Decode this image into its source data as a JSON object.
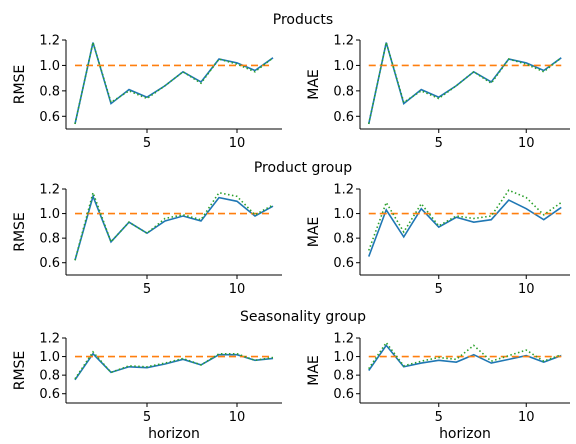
{
  "chart_data": [
    {
      "type": "line",
      "group_title": "Products",
      "ylabel": "RMSE",
      "xlabel": "",
      "xlim": [
        0.5,
        12.5
      ],
      "ylim": [
        0.5,
        1.2
      ],
      "yticks": [
        0.6,
        0.8,
        1.0,
        1.2
      ],
      "xticks": [
        5,
        10
      ],
      "x": [
        1,
        2,
        3,
        4,
        5,
        6,
        7,
        8,
        9,
        10,
        11,
        12
      ],
      "series": [
        {
          "color": "#1f77b4",
          "style": "solid",
          "values": [
            0.54,
            1.18,
            0.7,
            0.81,
            0.75,
            0.84,
            0.95,
            0.87,
            1.05,
            1.02,
            0.96,
            1.06
          ]
        },
        {
          "color": "#ff7f0e",
          "style": "dashed",
          "values": [
            1.0,
            1.0,
            1.0,
            1.0,
            1.0,
            1.0,
            1.0,
            1.0,
            1.0,
            1.0,
            1.0,
            1.0
          ]
        },
        {
          "color": "#2ca02c",
          "style": "dotted",
          "values": [
            0.54,
            1.18,
            0.71,
            0.8,
            0.74,
            0.84,
            0.95,
            0.86,
            1.05,
            1.01,
            0.95,
            1.06
          ]
        }
      ]
    },
    {
      "type": "line",
      "group_title": "",
      "ylabel": "MAE",
      "xlabel": "",
      "xlim": [
        0.5,
        12.5
      ],
      "ylim": [
        0.5,
        1.2
      ],
      "yticks": [
        0.6,
        0.8,
        1.0,
        1.2
      ],
      "xticks": [
        5,
        10
      ],
      "x": [
        1,
        2,
        3,
        4,
        5,
        6,
        7,
        8,
        9,
        10,
        11,
        12
      ],
      "series": [
        {
          "color": "#1f77b4",
          "style": "solid",
          "values": [
            0.54,
            1.18,
            0.7,
            0.81,
            0.75,
            0.84,
            0.95,
            0.87,
            1.05,
            1.02,
            0.96,
            1.06
          ]
        },
        {
          "color": "#ff7f0e",
          "style": "dashed",
          "values": [
            1.0,
            1.0,
            1.0,
            1.0,
            1.0,
            1.0,
            1.0,
            1.0,
            1.0,
            1.0,
            1.0,
            1.0
          ]
        },
        {
          "color": "#2ca02c",
          "style": "dotted",
          "values": [
            0.54,
            1.18,
            0.71,
            0.8,
            0.74,
            0.84,
            0.95,
            0.86,
            1.05,
            1.01,
            0.95,
            1.06
          ]
        }
      ]
    },
    {
      "type": "line",
      "group_title": "Product group",
      "ylabel": "RMSE",
      "xlabel": "",
      "xlim": [
        0.5,
        12.5
      ],
      "ylim": [
        0.5,
        1.2
      ],
      "yticks": [
        0.6,
        0.8,
        1.0,
        1.2
      ],
      "xticks": [
        5,
        10
      ],
      "x": [
        1,
        2,
        3,
        4,
        5,
        6,
        7,
        8,
        9,
        10,
        11,
        12
      ],
      "series": [
        {
          "color": "#1f77b4",
          "style": "solid",
          "values": [
            0.62,
            1.14,
            0.77,
            0.93,
            0.84,
            0.94,
            0.98,
            0.94,
            1.13,
            1.1,
            0.98,
            1.06
          ]
        },
        {
          "color": "#ff7f0e",
          "style": "dashed",
          "values": [
            1.0,
            1.0,
            1.0,
            1.0,
            1.0,
            1.0,
            1.0,
            1.0,
            1.0,
            1.0,
            1.0,
            1.0
          ]
        },
        {
          "color": "#2ca02c",
          "style": "dotted",
          "values": [
            0.62,
            1.17,
            0.77,
            0.93,
            0.84,
            0.96,
            0.99,
            0.95,
            1.17,
            1.14,
            0.99,
            1.07
          ]
        }
      ]
    },
    {
      "type": "line",
      "group_title": "",
      "ylabel": "MAE",
      "xlabel": "",
      "xlim": [
        0.5,
        12.5
      ],
      "ylim": [
        0.5,
        1.2
      ],
      "yticks": [
        0.6,
        0.8,
        1.0,
        1.2
      ],
      "xticks": [
        5,
        10
      ],
      "x": [
        1,
        2,
        3,
        4,
        5,
        6,
        7,
        8,
        9,
        10,
        11,
        12
      ],
      "series": [
        {
          "color": "#1f77b4",
          "style": "solid",
          "values": [
            0.65,
            1.03,
            0.81,
            1.04,
            0.89,
            0.97,
            0.93,
            0.95,
            1.11,
            1.04,
            0.95,
            1.05
          ]
        },
        {
          "color": "#ff7f0e",
          "style": "dashed",
          "values": [
            1.0,
            1.0,
            1.0,
            1.0,
            1.0,
            1.0,
            1.0,
            1.0,
            1.0,
            1.0,
            1.0,
            1.0
          ]
        },
        {
          "color": "#2ca02c",
          "style": "dotted",
          "values": [
            0.7,
            1.09,
            0.85,
            1.08,
            0.9,
            0.98,
            0.96,
            0.98,
            1.19,
            1.13,
            0.99,
            1.09
          ]
        }
      ]
    },
    {
      "type": "line",
      "group_title": "Seasonality group",
      "ylabel": "RMSE",
      "xlabel": "horizon",
      "xlim": [
        0.5,
        12.5
      ],
      "ylim": [
        0.5,
        1.2
      ],
      "yticks": [
        0.6,
        0.8,
        1.0,
        1.2
      ],
      "xticks": [
        5,
        10
      ],
      "x": [
        1,
        2,
        3,
        4,
        5,
        6,
        7,
        8,
        9,
        10,
        11,
        12
      ],
      "series": [
        {
          "color": "#1f77b4",
          "style": "solid",
          "values": [
            0.75,
            1.03,
            0.83,
            0.89,
            0.88,
            0.92,
            0.97,
            0.91,
            1.02,
            1.02,
            0.96,
            0.98
          ]
        },
        {
          "color": "#ff7f0e",
          "style": "dashed",
          "values": [
            1.0,
            1.0,
            1.0,
            1.0,
            1.0,
            1.0,
            1.0,
            1.0,
            1.0,
            1.0,
            1.0,
            1.0
          ]
        },
        {
          "color": "#2ca02c",
          "style": "dotted",
          "values": [
            0.76,
            1.05,
            0.83,
            0.9,
            0.89,
            0.93,
            0.98,
            0.91,
            1.03,
            1.03,
            0.96,
            0.99
          ]
        }
      ]
    },
    {
      "type": "line",
      "group_title": "",
      "ylabel": "MAE",
      "xlabel": "horizon",
      "xlim": [
        0.5,
        12.5
      ],
      "ylim": [
        0.5,
        1.2
      ],
      "yticks": [
        0.6,
        0.8,
        1.0,
        1.2
      ],
      "xticks": [
        5,
        10
      ],
      "x": [
        1,
        2,
        3,
        4,
        5,
        6,
        7,
        8,
        9,
        10,
        11,
        12
      ],
      "series": [
        {
          "color": "#1f77b4",
          "style": "solid",
          "values": [
            0.85,
            1.12,
            0.89,
            0.93,
            0.96,
            0.94,
            1.02,
            0.93,
            0.97,
            1.01,
            0.94,
            1.01
          ]
        },
        {
          "color": "#ff7f0e",
          "style": "dashed",
          "values": [
            1.0,
            1.0,
            1.0,
            1.0,
            1.0,
            1.0,
            1.0,
            1.0,
            1.0,
            1.0,
            1.0,
            1.0
          ]
        },
        {
          "color": "#2ca02c",
          "style": "dotted",
          "values": [
            0.87,
            1.15,
            0.9,
            0.95,
            0.99,
            0.97,
            1.12,
            0.95,
            1.01,
            1.07,
            0.95,
            1.02
          ]
        }
      ]
    }
  ]
}
